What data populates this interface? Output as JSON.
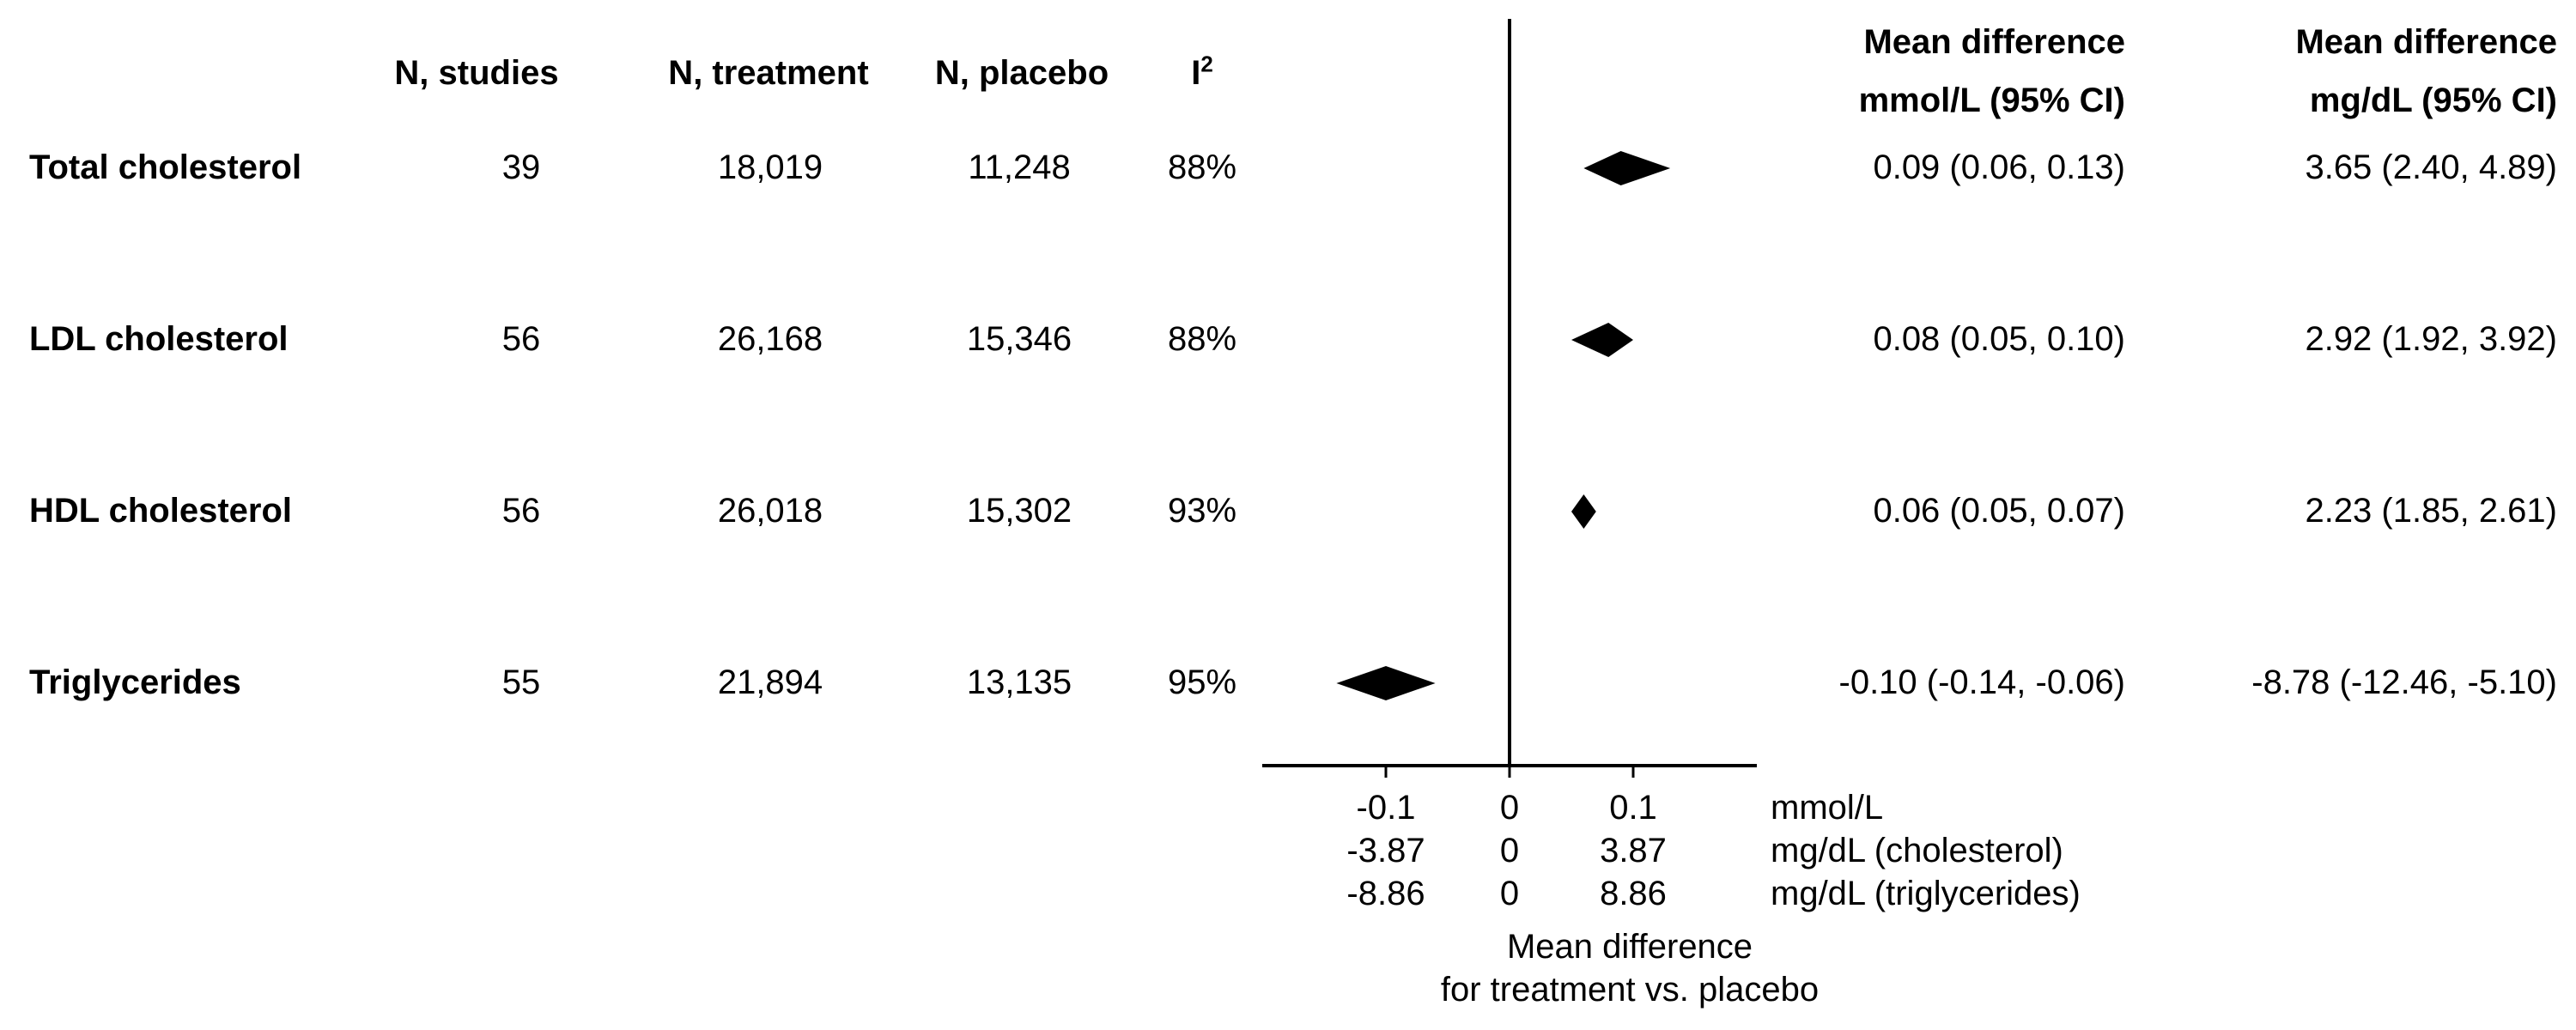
{
  "headers": {
    "n_studies": "N, studies",
    "n_treatment": "N, treatment",
    "n_placebo": "N, placebo",
    "i2_base": "I",
    "i2_sup": "2",
    "md_mmol_line1": "Mean difference",
    "md_mmol_line2": "mmol/L (95% CI)",
    "md_mgdl_line1": "Mean difference",
    "md_mgdl_line2": "mg/dL (95% CI)"
  },
  "rows": [
    {
      "label": "Total cholesterol",
      "n_studies": "39",
      "n_treatment": "18,019",
      "n_placebo": "11,248",
      "i2": "88%",
      "md_mmol": "0.09 (0.06, 0.13)",
      "md_mgdl": "3.65 (2.40, 4.89)"
    },
    {
      "label": "LDL cholesterol",
      "n_studies": "56",
      "n_treatment": "26,168",
      "n_placebo": "15,346",
      "i2": "88%",
      "md_mmol": "0.08 (0.05, 0.10)",
      "md_mgdl": "2.92 (1.92, 3.92)"
    },
    {
      "label": "HDL cholesterol",
      "n_studies": "56",
      "n_treatment": "26,018",
      "n_placebo": "15,302",
      "i2": "93%",
      "md_mmol": "0.06 (0.05, 0.07)",
      "md_mgdl": "2.23 (1.85, 2.61)"
    },
    {
      "label": "Triglycerides",
      "n_studies": "55",
      "n_treatment": "21,894",
      "n_placebo": "13,135",
      "i2": "95%",
      "md_mmol": "-0.10 (-0.14, -0.06)",
      "md_mgdl": "-8.78 (-12.46, -5.10)"
    }
  ],
  "axis": {
    "ticks": [
      {
        "value": -0.1,
        "mmol": "-0.1",
        "chol": "-3.87",
        "trig": "-8.86"
      },
      {
        "value": 0,
        "mmol": "0",
        "chol": "0",
        "trig": "0"
      },
      {
        "value": 0.1,
        "mmol": "0.1",
        "chol": "3.87",
        "trig": "8.86"
      }
    ],
    "unit_mmol": "mmol/L",
    "unit_chol": "mg/dL (cholesterol)",
    "unit_trig": "mg/dL (triglycerides)",
    "xlabel_line1": "Mean difference",
    "xlabel_line2": "for treatment vs. placebo"
  },
  "chart_data": {
    "type": "forest",
    "x": {
      "min": -0.2,
      "max": 0.2,
      "reference": 0
    },
    "series": [
      {
        "category": "Total cholesterol",
        "estimate": 0.09,
        "lower": 0.06,
        "upper": 0.13
      },
      {
        "category": "LDL cholesterol",
        "estimate": 0.08,
        "lower": 0.05,
        "upper": 0.1
      },
      {
        "category": "HDL cholesterol",
        "estimate": 0.06,
        "lower": 0.05,
        "upper": 0.07
      },
      {
        "category": "Triglycerides",
        "estimate": -0.1,
        "lower": -0.14,
        "upper": -0.06
      }
    ]
  },
  "colors": {
    "ink": "#000000"
  }
}
